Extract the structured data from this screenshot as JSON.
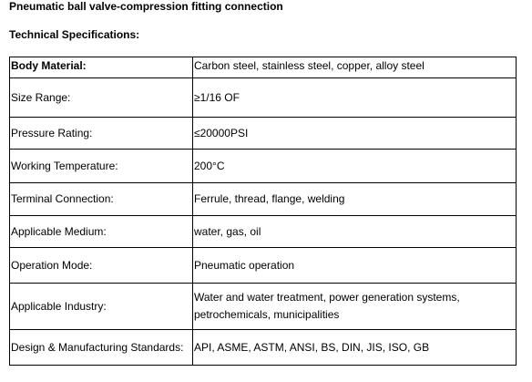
{
  "header": {
    "title": "Pneumatic ball valve-compression fitting connection",
    "subtitle": "Technical Specifications:"
  },
  "table": {
    "rows": [
      [
        "Body Material:",
        "Carbon steel, stainless steel, copper, alloy steel"
      ],
      [
        "Size Range:",
        "≥1/16 OF"
      ],
      [
        "Pressure Rating:",
        "≤20000PSI"
      ],
      [
        "Working Temperature:",
        "200°C"
      ],
      [
        "Terminal Connection:",
        "Ferrule, thread, flange, welding"
      ],
      [
        "Applicable Medium:",
        "water, gas, oil"
      ],
      [
        "Operation Mode:",
        "Pneumatic operation"
      ],
      [
        "Applicable Industry:",
        "Water and water treatment, power generation systems, petrochemicals, municipalities"
      ],
      [
        "Design & Manufacturing Standards:",
        "API, ASME, ASTM, ANSI, BS, DIN, JIS, ISO, GB"
      ]
    ]
  }
}
